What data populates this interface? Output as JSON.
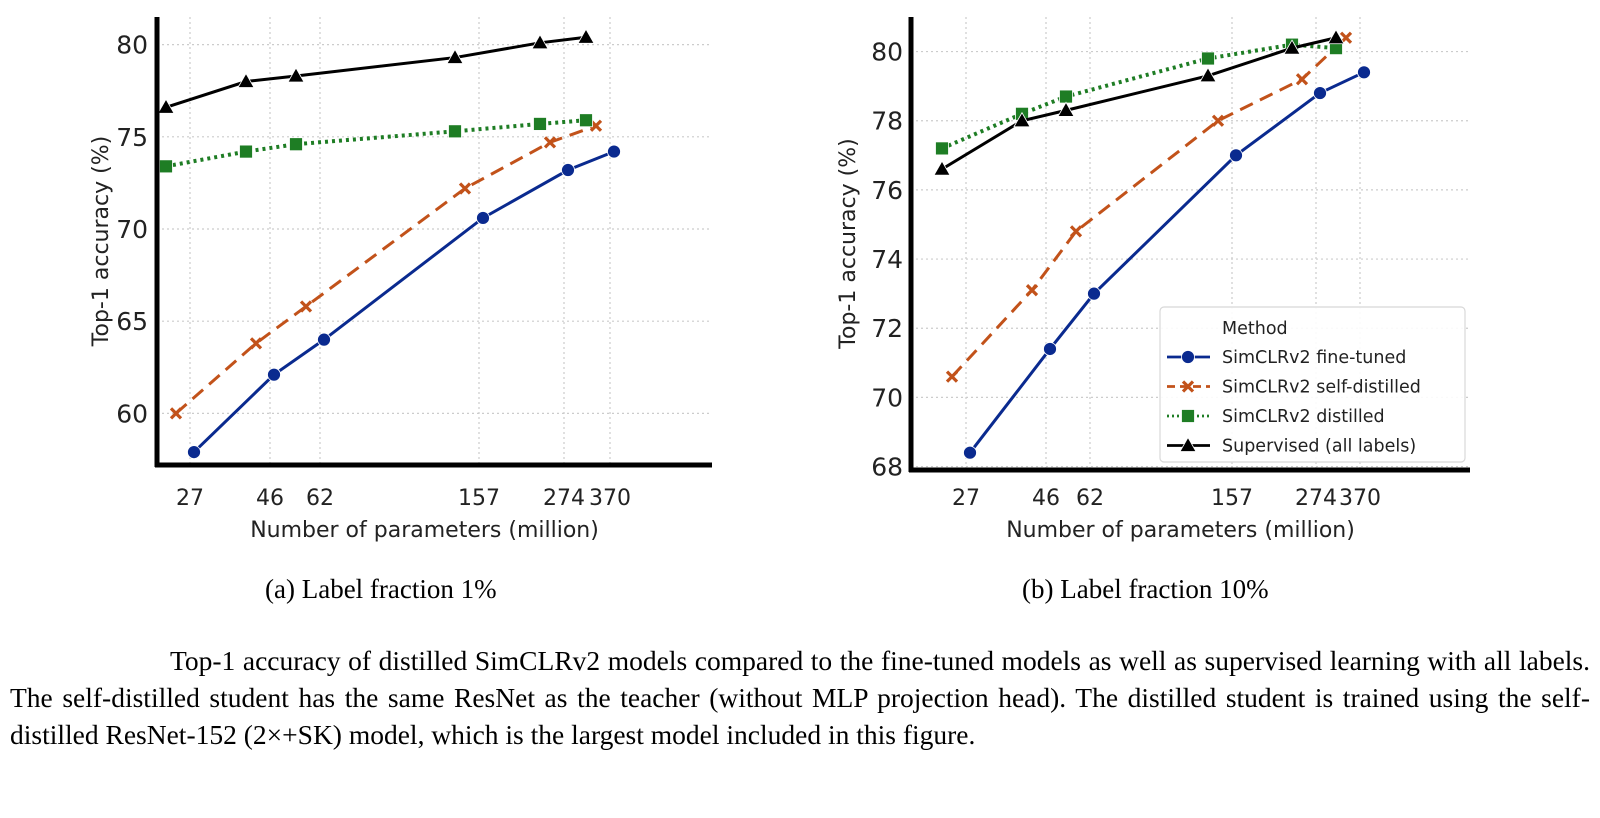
{
  "chart_data": [
    {
      "id": "a",
      "type": "line",
      "subcaption": "(a) Label fraction 1%",
      "xlabel": "Number of parameters (million)",
      "ylabel": "Top-1 accuracy (%)",
      "x": [
        27,
        46,
        62,
        157,
        274,
        370
      ],
      "x_tick_labels": [
        "27",
        "46",
        "62",
        "157",
        "274",
        "370"
      ],
      "x_scale": "log",
      "xlim": [
        20,
        400
      ],
      "ylim": [
        57.2,
        81.5
      ],
      "y_ticks": [
        60,
        65,
        70,
        75,
        80
      ],
      "y_tick_labels": [
        "60",
        "65",
        "70",
        "75",
        "80"
      ],
      "grid": true,
      "legend": null,
      "series": [
        {
          "name": "SimCLRv2 fine-tuned",
          "color": "#0a2a8f",
          "linestyle": "solid",
          "marker": "circle",
          "values": [
            57.9,
            62.1,
            64.0,
            70.6,
            73.2,
            74.2
          ]
        },
        {
          "name": "SimCLRv2 self-distilled",
          "color": "#c2521a",
          "linestyle": "dashed",
          "marker": "x",
          "values": [
            60.0,
            63.8,
            65.8,
            72.2,
            74.7,
            75.6
          ]
        },
        {
          "name": "SimCLRv2 distilled",
          "color": "#1e7d24",
          "linestyle": "dotted",
          "marker": "square",
          "values": [
            73.4,
            74.2,
            74.6,
            75.3,
            75.7,
            75.9
          ]
        },
        {
          "name": "Supervised (all labels)",
          "color": "#000000",
          "linestyle": "solid",
          "marker": "triangle",
          "values": [
            76.6,
            78.0,
            78.3,
            79.3,
            80.1,
            80.4
          ]
        }
      ]
    },
    {
      "id": "b",
      "type": "line",
      "subcaption": "(b) Label fraction 10%",
      "xlabel": "Number of parameters (million)",
      "ylabel": "Top-1 accuracy (%)",
      "x": [
        27,
        46,
        62,
        157,
        274,
        370
      ],
      "x_tick_labels": [
        "27",
        "46",
        "62",
        "157",
        "274",
        "370"
      ],
      "x_scale": "log",
      "xlim": [
        20,
        400
      ],
      "ylim": [
        67.9,
        81.0
      ],
      "y_ticks": [
        68,
        70,
        72,
        74,
        76,
        78,
        80
      ],
      "y_tick_labels": [
        "68",
        "70",
        "72",
        "74",
        "76",
        "78",
        "80"
      ],
      "grid": true,
      "legend": {
        "title": "Method",
        "placement": "lower-right"
      },
      "series": [
        {
          "name": "SimCLRv2 fine-tuned",
          "color": "#0a2a8f",
          "linestyle": "solid",
          "marker": "circle",
          "values": [
            68.4,
            71.4,
            73.0,
            77.0,
            78.8,
            79.4
          ]
        },
        {
          "name": "SimCLRv2 self-distilled",
          "color": "#c2521a",
          "linestyle": "dashed",
          "marker": "x",
          "values": [
            70.6,
            73.1,
            74.8,
            78.0,
            79.2,
            80.4
          ]
        },
        {
          "name": "SimCLRv2 distilled",
          "color": "#1e7d24",
          "linestyle": "dotted",
          "marker": "square",
          "values": [
            77.2,
            78.2,
            78.7,
            79.8,
            80.2,
            80.1
          ]
        },
        {
          "name": "Supervised (all labels)",
          "color": "#000000",
          "linestyle": "solid",
          "marker": "triangle",
          "values": [
            76.6,
            78.0,
            78.3,
            79.3,
            80.1,
            80.4
          ]
        }
      ]
    }
  ],
  "figure": {
    "subcaption_a": "(a) Label fraction 1%",
    "subcaption_b": "(b) Label fraction 10%",
    "caption": "Top-1 accuracy of distilled SimCLRv2 models compared to the fine-tuned models as well as supervised learning with all labels. The self-distilled student has the same ResNet as the teacher (without MLP projection head). The distilled student is trained using the self-distilled ResNet-152 (2×+SK) model, which is the largest model included in this figure."
  }
}
